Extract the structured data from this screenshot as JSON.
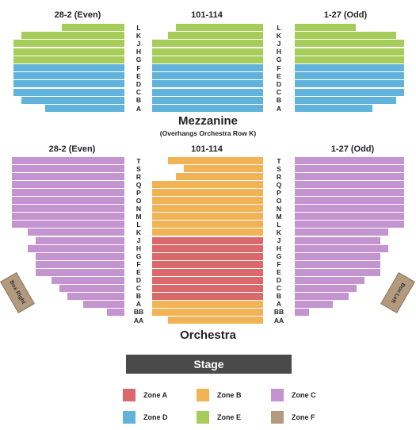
{
  "sections": {
    "left_label": "28-2 (Even)",
    "center_label": "101-114",
    "right_label": "1-27 (Odd)"
  },
  "mezzanine": {
    "title": "Mezzanine",
    "subtitle": "(Overhangs Orchestra Row K)",
    "rows": [
      "L",
      "K",
      "J",
      "H",
      "G",
      "F",
      "E",
      "D",
      "C",
      "B",
      "A"
    ]
  },
  "orchestra": {
    "title": "Orchestra",
    "rows": [
      "T",
      "S",
      "R",
      "Q",
      "P",
      "O",
      "N",
      "M",
      "L",
      "K",
      "J",
      "H",
      "G",
      "F",
      "E",
      "D",
      "C",
      "B",
      "A",
      "BB",
      "AA"
    ]
  },
  "stage": "Stage",
  "box_right": "Box Right",
  "box_left": "Box Left",
  "colors": {
    "zone_a": "#d9696a",
    "zone_b": "#f2b356",
    "zone_c": "#c394cf",
    "zone_d": "#62b3db",
    "zone_e": "#a6cc5a",
    "zone_f": "#b39a7f"
  },
  "legend": [
    {
      "label": "Zone A",
      "color": "#d9696a"
    },
    {
      "label": "Zone B",
      "color": "#f2b356"
    },
    {
      "label": "Zone C",
      "color": "#c394cf"
    },
    {
      "label": "Zone D",
      "color": "#62b3db"
    },
    {
      "label": "Zone E",
      "color": "#a6cc5a"
    },
    {
      "label": "Zone F",
      "color": "#b39a7f"
    }
  ]
}
